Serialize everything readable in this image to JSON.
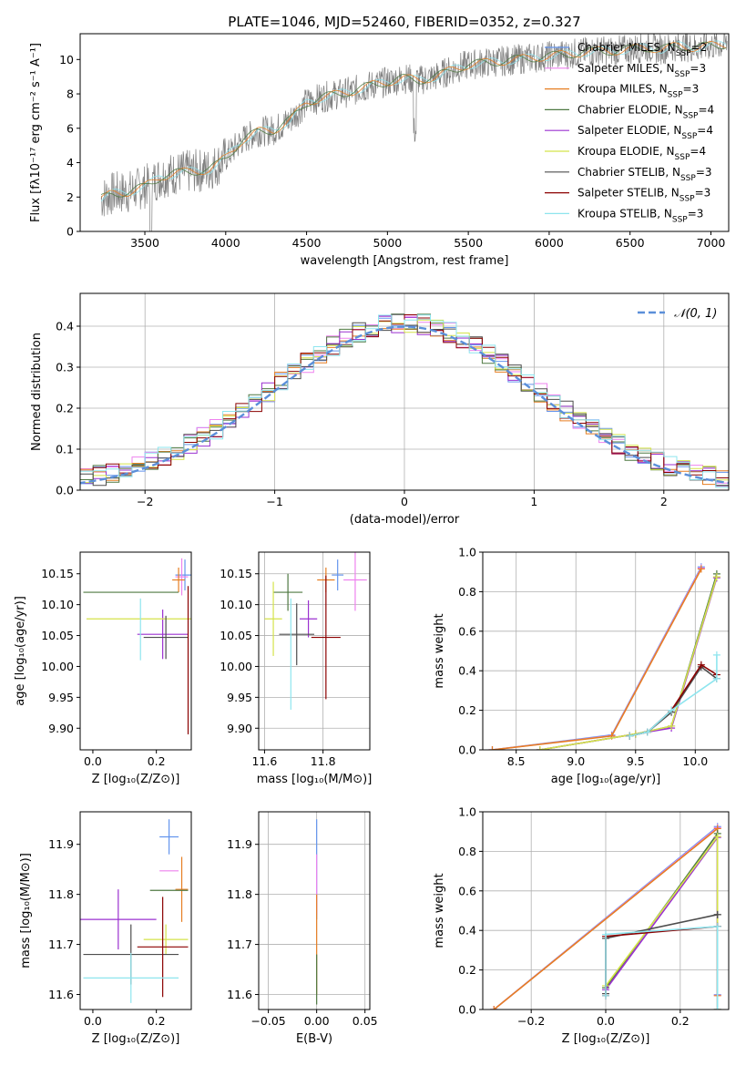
{
  "colors": {
    "chabrier_miles": "#6495ED",
    "salpeter_miles": "#EE82EE",
    "kroupa_miles": "#E67E22",
    "chabrier_elodie": "#4F7942",
    "salpeter_elodie": "#9B30D0",
    "kroupa_elodie": "#D4E34A",
    "chabrier_stelib": "#4D4D4D",
    "salpeter_stelib": "#8B0000",
    "kroupa_stelib": "#8EE5EE",
    "normal_curve": "#5B8FD9",
    "grid": "#B0B0B0",
    "spectrum_gray": "#808080"
  },
  "chart_data": [
    {
      "id": "spectrum",
      "type": "line",
      "title": "PLATE=1046, MJD=52460, FIBERID=0352, z=0.327",
      "xlabel": "wavelength [Angstrom, rest frame]",
      "ylabel": "Flux [fλ10⁻¹⁷ erg cm⁻² s⁻¹ A⁻¹]",
      "xlim": [
        3100,
        7110
      ],
      "ylim": [
        0,
        11.5
      ],
      "xticks": [
        3500,
        4000,
        4500,
        5000,
        5500,
        6000,
        6500,
        7000
      ],
      "yticks": [
        0,
        2,
        4,
        6,
        8,
        10
      ],
      "grid": false,
      "legend_position": "top-right",
      "x": [
        3230,
        3300,
        3400,
        3500,
        3550,
        3600,
        3700,
        3800,
        3900,
        3950,
        4000,
        4100,
        4200,
        4300,
        4400,
        4500,
        4600,
        4700,
        4800,
        4900,
        5000,
        5100,
        5200,
        5300,
        5400,
        5500,
        5600,
        5700,
        5800,
        5900,
        6000,
        6100,
        6200,
        6300,
        6400,
        6500,
        6600,
        6700,
        6800,
        6900,
        7000,
        7100
      ],
      "y": [
        1.9,
        2.2,
        2.3,
        2.6,
        2.9,
        3.2,
        3.4,
        3.5,
        3.6,
        3.9,
        4.3,
        5.3,
        5.8,
        5.9,
        6.5,
        7.5,
        7.8,
        8.0,
        8.2,
        8.5,
        8.7,
        8.9,
        8.8,
        9.0,
        9.4,
        9.7,
        9.8,
        9.9,
        10.0,
        10.1,
        10.2,
        10.3,
        10.4,
        10.5,
        10.5,
        10.6,
        10.7,
        10.6,
        10.8,
        10.7,
        10.8,
        10.9
      ],
      "series": [
        {
          "name": "Chabrier MILES, N$_{SSP}$=2"
        },
        {
          "name": "Salpeter MILES, N$_{SSP}$=3"
        },
        {
          "name": "Kroupa MILES, N$_{SSP}$=3"
        },
        {
          "name": "Chabrier ELODIE, N$_{SSP}$=4"
        },
        {
          "name": "Salpeter ELODIE, N$_{SSP}$=4"
        },
        {
          "name": "Kroupa ELODIE, N$_{SSP}$=4"
        },
        {
          "name": "Chabrier STELIB, N$_{SSP}$=3"
        },
        {
          "name": "Salpeter STELIB, N$_{SSP}$=3"
        },
        {
          "name": "Kroupa STELIB, N$_{SSP}$=3"
        }
      ]
    },
    {
      "id": "residuals",
      "type": "line",
      "title": "",
      "xlabel": "(data-model)/error",
      "ylabel": "Normed distribution",
      "xlim": [
        -2.5,
        2.5
      ],
      "ylim": [
        0,
        0.48
      ],
      "xticks": [
        -2,
        -1,
        0,
        1,
        2
      ],
      "yticks": [
        0.0,
        0.1,
        0.2,
        0.3,
        0.4
      ],
      "grid": true,
      "legend_position": "top-right",
      "legend": "𝒩(0, 1)",
      "bin_width": 0.1
    },
    {
      "id": "age_vs_z",
      "type": "scatter",
      "xlabel": "Z [log₁₀(Z/Z⊙)]",
      "ylabel": "age  [log₁₀(age/yr)]",
      "xlim": [
        -0.04,
        0.31
      ],
      "ylim": [
        9.865,
        10.185
      ],
      "xticks": [
        0.0,
        0.2
      ],
      "yticks": [
        9.9,
        9.95,
        10.0,
        10.05,
        10.1,
        10.15
      ],
      "grid": false,
      "points": [
        {
          "x": 0.29,
          "y": 10.148,
          "xerr": 0.03,
          "yerr": 0.025
        },
        {
          "x": 0.28,
          "y": 10.145,
          "xerr": 0.02,
          "yerr": 0.03
        },
        {
          "x": 0.27,
          "y": 10.14,
          "xerr": 0.02,
          "yerr": 0.02
        },
        {
          "x": 0.12,
          "y": 10.12,
          "xerr": 0.15,
          "yerr": 0.0
        },
        {
          "x": 0.22,
          "y": 10.052,
          "xerr": 0.08,
          "yerr": 0.04
        },
        {
          "x": 0.16,
          "y": 10.077,
          "xerr": 0.18,
          "yerr": 0.0
        },
        {
          "x": 0.23,
          "y": 10.047,
          "xerr": 0.07,
          "yerr": 0.035
        },
        {
          "x": 0.3,
          "y": 10.01,
          "xerr": 0.0,
          "yerr": 0.12
        },
        {
          "x": 0.15,
          "y": 10.06,
          "xerr": 0.0,
          "yerr": 0.05
        }
      ]
    },
    {
      "id": "age_vs_mass",
      "type": "scatter",
      "xlabel": "mass [log₁₀(M/M⊙)]",
      "ylabel": "",
      "xlim": [
        11.58,
        11.96
      ],
      "ylim": [
        9.865,
        10.185
      ],
      "xticks": [
        11.6,
        11.8
      ],
      "yticks": [
        9.9,
        9.95,
        10.0,
        10.05,
        10.1,
        10.15
      ],
      "grid": true,
      "points": [
        {
          "x": 11.85,
          "y": 10.148,
          "xerr": 0.02,
          "yerr": 0.025
        },
        {
          "x": 11.91,
          "y": 10.14,
          "xerr": 0.04,
          "yerr": 0.05
        },
        {
          "x": 11.81,
          "y": 10.14,
          "xerr": 0.03,
          "yerr": 0.02
        },
        {
          "x": 11.68,
          "y": 10.12,
          "xerr": 0.05,
          "yerr": 0.03
        },
        {
          "x": 11.75,
          "y": 10.077,
          "xerr": 0.03,
          "yerr": 0.03
        },
        {
          "x": 11.63,
          "y": 10.077,
          "xerr": 0.03,
          "yerr": 0.06
        },
        {
          "x": 11.71,
          "y": 10.052,
          "xerr": 0.06,
          "yerr": 0.05
        },
        {
          "x": 11.81,
          "y": 10.047,
          "xerr": 0.05,
          "yerr": 0.1
        },
        {
          "x": 11.69,
          "y": 10.02,
          "xerr": 0.0,
          "yerr": 0.09
        }
      ]
    },
    {
      "id": "weight_vs_age",
      "type": "line",
      "xlabel": "age  [log₁₀(age/yr)]",
      "ylabel": "mass weight",
      "xlim": [
        8.22,
        10.28
      ],
      "ylim": [
        0,
        1
      ],
      "xticks": [
        8.5,
        9.0,
        9.5,
        10.0
      ],
      "yticks": [
        0.0,
        0.2,
        0.4,
        0.6,
        0.8,
        1.0
      ],
      "grid": true,
      "series": [
        {
          "x": [
            8.3,
            9.3,
            10.05
          ],
          "y": [
            0.0,
            0.075,
            0.925
          ]
        },
        {
          "x": [
            8.3,
            9.3,
            10.05
          ],
          "y": [
            0.0,
            0.072,
            0.92
          ]
        },
        {
          "x": [
            8.3,
            9.3,
            10.05
          ],
          "y": [
            0.0,
            0.07,
            0.915
          ]
        },
        {
          "x": [
            8.7,
            9.5,
            9.8,
            10.18
          ],
          "y": [
            0.0,
            0.08,
            0.12,
            0.89
          ]
        },
        {
          "x": [
            8.7,
            9.5,
            9.8,
            10.18
          ],
          "y": [
            0.0,
            0.08,
            0.11,
            0.87
          ]
        },
        {
          "x": [
            8.7,
            9.5,
            9.8,
            10.18
          ],
          "y": [
            0.0,
            0.08,
            0.12,
            0.875
          ]
        },
        {
          "x": [
            9.45,
            9.6,
            9.8,
            10.05,
            10.18
          ],
          "y": [
            0.07,
            0.09,
            0.19,
            0.42,
            0.36
          ]
        },
        {
          "x": [
            9.45,
            9.6,
            9.8,
            10.05,
            10.18
          ],
          "y": [
            0.07,
            0.09,
            0.2,
            0.43,
            0.38
          ]
        },
        {
          "x": [
            9.45,
            9.6,
            9.8,
            10.18,
            10.18
          ],
          "y": [
            0.07,
            0.09,
            0.2,
            0.36,
            0.48
          ]
        }
      ]
    },
    {
      "id": "mass_vs_z",
      "type": "scatter",
      "xlabel": "Z [log₁₀(Z/Z⊙)]",
      "ylabel": "mass [log₁₀(M/M⊙)]",
      "xlim": [
        -0.04,
        0.31
      ],
      "ylim": [
        11.57,
        11.965
      ],
      "xticks": [
        0.0,
        0.2
      ],
      "yticks": [
        11.6,
        11.7,
        11.8,
        11.9
      ],
      "grid": false,
      "points": [
        {
          "x": 0.24,
          "y": 11.915,
          "xerr": 0.03,
          "yerr": 0.035
        },
        {
          "x": 0.24,
          "y": 11.847,
          "xerr": 0.03,
          "yerr": 0.0
        },
        {
          "x": 0.28,
          "y": 11.81,
          "xerr": 0.02,
          "yerr": 0.065
        },
        {
          "x": 0.24,
          "y": 11.808,
          "xerr": 0.06,
          "yerr": 0.0
        },
        {
          "x": 0.08,
          "y": 11.75,
          "xerr": 0.12,
          "yerr": 0.06
        },
        {
          "x": 0.23,
          "y": 11.71,
          "xerr": 0.07,
          "yerr": 0.03
        },
        {
          "x": 0.12,
          "y": 11.68,
          "xerr": 0.15,
          "yerr": 0.06
        },
        {
          "x": 0.22,
          "y": 11.695,
          "xerr": 0.08,
          "yerr": 0.1
        },
        {
          "x": 0.12,
          "y": 11.633,
          "xerr": 0.15,
          "yerr": 0.05
        }
      ]
    },
    {
      "id": "mass_vs_ebv",
      "type": "scatter",
      "xlabel": "E(B-V)",
      "ylabel": "",
      "xlim": [
        -0.06,
        0.055
      ],
      "ylim": [
        11.57,
        11.965
      ],
      "xticks": [
        -0.05,
        0.0,
        0.05
      ],
      "yticks": [
        11.6,
        11.7,
        11.8,
        11.9
      ],
      "grid": true,
      "points": [
        {
          "x": 0.0,
          "y": 11.85,
          "xerr": 0.0,
          "yerr": 0.1
        },
        {
          "x": 0.0,
          "y": 11.82,
          "xerr": 0.0,
          "yerr": 0.06
        },
        {
          "x": 0.0,
          "y": 11.7,
          "xerr": 0.0,
          "yerr": 0.1
        },
        {
          "x": 0.0,
          "y": 11.63,
          "xerr": 0.0,
          "yerr": 0.05
        }
      ]
    },
    {
      "id": "weight_vs_z",
      "type": "line",
      "xlabel": "Z [log₁₀(Z/Z⊙)]",
      "ylabel": "mass weight",
      "xlim": [
        -0.33,
        0.33
      ],
      "ylim": [
        0,
        1
      ],
      "xticks": [
        -0.2,
        0.0,
        0.2
      ],
      "yticks": [
        0.0,
        0.2,
        0.4,
        0.6,
        0.8,
        1.0
      ],
      "grid": true,
      "series": [
        {
          "x": [
            -0.3,
            0.3,
            0.3
          ],
          "y": [
            0.0,
            0.925,
            0.075
          ]
        },
        {
          "x": [
            -0.3,
            0.3,
            0.3
          ],
          "y": [
            0.0,
            0.92,
            0.072
          ]
        },
        {
          "x": [
            -0.3,
            0.3,
            0.3
          ],
          "y": [
            0.0,
            0.915,
            0.07
          ]
        },
        {
          "x": [
            0.0,
            0.3,
            0.3
          ],
          "y": [
            0.11,
            0.89,
            0.0
          ]
        },
        {
          "x": [
            0.0,
            0.3,
            0.3
          ],
          "y": [
            0.1,
            0.87,
            0.0
          ]
        },
        {
          "x": [
            0.0,
            0.3,
            0.3
          ],
          "y": [
            0.12,
            0.875,
            0.0
          ]
        },
        {
          "x": [
            0.0,
            0.0,
            0.3,
            0.3
          ],
          "y": [
            0.08,
            0.36,
            0.48,
            0.48
          ]
        },
        {
          "x": [
            0.0,
            0.0,
            0.3,
            0.3
          ],
          "y": [
            0.07,
            0.37,
            0.42,
            0.42
          ]
        },
        {
          "x": [
            0.0,
            0.0,
            0.3,
            0.3
          ],
          "y": [
            0.07,
            0.38,
            0.42,
            0.0
          ]
        }
      ]
    }
  ]
}
